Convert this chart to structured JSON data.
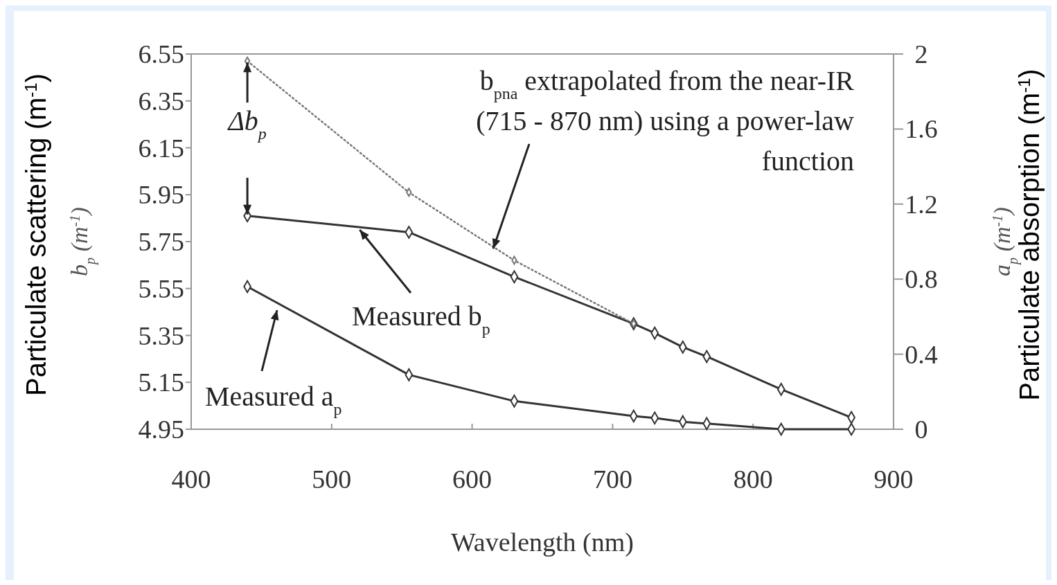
{
  "chart_data": {
    "type": "line",
    "xlabel": "Wavelength (nm)",
    "ylabel": "b$_{p}$ (m$^{-1}$)",
    "y2label": "a$_{p}$ (m$^{-1}$)",
    "xlim": [
      400,
      900
    ],
    "xticks": [
      400,
      500,
      600,
      700,
      800,
      900
    ],
    "ylim": [
      4.95,
      6.55
    ],
    "yticks": [
      4.95,
      5.15,
      5.35,
      5.55,
      5.75,
      5.95,
      6.15,
      6.35,
      6.55
    ],
    "y2lim": [
      0,
      2
    ],
    "y2ticks": [
      0,
      0.4,
      0.8,
      1.2,
      1.6,
      2
    ],
    "marker": "diamond",
    "grid": false,
    "series": [
      {
        "color": "#333333",
        "x": [
          440,
          555,
          630,
          715,
          730,
          750,
          767,
          820,
          870
        ],
        "values": [
          5.86,
          5.79,
          5.6,
          5.4,
          5.36,
          5.3,
          5.26,
          5.12,
          5.0
        ]
      },
      {
        "color": "#777777",
        "line_style": "dotted",
        "x": [
          440,
          555,
          630,
          715
        ],
        "values": [
          6.52,
          5.96,
          5.67,
          5.4
        ]
      },
      {
        "color": "#333333",
        "axis": "y2",
        "x": [
          440,
          555,
          630,
          715,
          730,
          750,
          767,
          820,
          870
        ],
        "values": [
          0.76,
          0.29,
          0.15,
          0.07,
          0.06,
          0.04,
          0.03,
          0,
          0
        ]
      }
    ],
    "annotations": [
      {
        "text": "b$_{pna}$ extrapolated from the near-IR (715 - 870 nm) using a power-law function",
        "x": 615,
        "y": 5.72
      },
      {
        "text": "Measured b$_{p}$",
        "x": 520,
        "y": 5.8
      },
      "Measured a$_{p}$",
      {
        "text": "Δb$_{p}$",
        "x": 440,
        "y": 6.52
      },
      "Particulate scattering (m$^{-1}$)",
      "Particulate absorption (m$^{-1}$)"
    ]
  }
}
